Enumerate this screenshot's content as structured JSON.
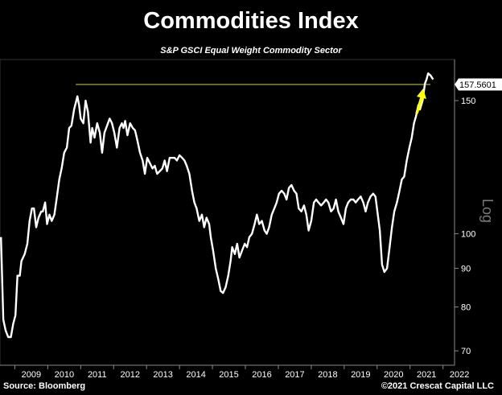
{
  "header": {
    "title": "Commodities Index",
    "subtitle": "S&P GSCI Equal Weight Commodity Sector"
  },
  "footer": {
    "source": "Source: Bloomberg",
    "copyright": "©2021 Crescat Capital LLC"
  },
  "chart_data": {
    "type": "line",
    "title": "Commodities Index",
    "subtitle": "S&P GSCI Equal Weight Commodity Sector",
    "yscale": "log",
    "ylabel": "Log",
    "ylim": [
      67,
      170
    ],
    "xlim": [
      2008.55,
      2022.35
    ],
    "x_ticks": [
      "2009",
      "2010",
      "2011",
      "2012",
      "2013",
      "2014",
      "2015",
      "2016",
      "2017",
      "2018",
      "2019",
      "2020",
      "2021",
      "2022"
    ],
    "y_ticks": [
      70,
      80,
      90,
      100,
      150
    ],
    "last_value_label": "157.5601",
    "reference_line": {
      "value": 157.5601,
      "color": "#d4d44a"
    },
    "annotation": "yellow-arrow",
    "colors": {
      "line": "#ffffff",
      "reference": "#d4d44a",
      "arrow": "#ffff00",
      "background": "#000000"
    },
    "series": [
      {
        "values": [
          [
            2008.58,
            99
          ],
          [
            2008.65,
            77
          ],
          [
            2008.72,
            74.5
          ],
          [
            2008.8,
            73
          ],
          [
            2008.88,
            73
          ],
          [
            2008.95,
            76
          ],
          [
            2009.02,
            78
          ],
          [
            2009.08,
            88
          ],
          [
            2009.15,
            88
          ],
          [
            2009.2,
            92
          ],
          [
            2009.3,
            94
          ],
          [
            2009.38,
            97
          ],
          [
            2009.45,
            104
          ],
          [
            2009.52,
            108
          ],
          [
            2009.58,
            108
          ],
          [
            2009.65,
            102
          ],
          [
            2009.72,
            105
          ],
          [
            2009.8,
            107
          ],
          [
            2009.85,
            107
          ],
          [
            2009.92,
            110
          ],
          [
            2009.98,
            103
          ],
          [
            2010.05,
            106
          ],
          [
            2010.12,
            104
          ],
          [
            2010.2,
            106
          ],
          [
            2010.28,
            112
          ],
          [
            2010.35,
            118
          ],
          [
            2010.42,
            122
          ],
          [
            2010.5,
            128
          ],
          [
            2010.58,
            130
          ],
          [
            2010.65,
            138
          ],
          [
            2010.72,
            139
          ],
          [
            2010.8,
            146
          ],
          [
            2010.85,
            149
          ],
          [
            2010.9,
            152
          ],
          [
            2010.95,
            148
          ],
          [
            2011.0,
            142
          ],
          [
            2011.08,
            140
          ],
          [
            2011.15,
            150
          ],
          [
            2011.22,
            145
          ],
          [
            2011.3,
            132
          ],
          [
            2011.35,
            138
          ],
          [
            2011.42,
            134
          ],
          [
            2011.5,
            140
          ],
          [
            2011.58,
            136
          ],
          [
            2011.65,
            128
          ],
          [
            2011.72,
            136
          ],
          [
            2011.8,
            139
          ],
          [
            2011.88,
            142
          ],
          [
            2011.95,
            140
          ],
          [
            2012.02,
            136
          ],
          [
            2012.1,
            130
          ],
          [
            2012.18,
            138
          ],
          [
            2012.25,
            140
          ],
          [
            2012.3,
            138
          ],
          [
            2012.35,
            141
          ],
          [
            2012.42,
            135
          ],
          [
            2012.5,
            140
          ],
          [
            2012.58,
            138
          ],
          [
            2012.65,
            137
          ],
          [
            2012.72,
            133
          ],
          [
            2012.8,
            128
          ],
          [
            2012.88,
            125
          ],
          [
            2012.95,
            120
          ],
          [
            2013.02,
            126
          ],
          [
            2013.1,
            124
          ],
          [
            2013.18,
            122
          ],
          [
            2013.25,
            123
          ],
          [
            2013.32,
            120
          ],
          [
            2013.4,
            121
          ],
          [
            2013.48,
            122
          ],
          [
            2013.55,
            125
          ],
          [
            2013.62,
            121
          ],
          [
            2013.7,
            126
          ],
          [
            2013.78,
            126
          ],
          [
            2013.85,
            126
          ],
          [
            2013.92,
            125
          ],
          [
            2014.0,
            127
          ],
          [
            2014.08,
            126
          ],
          [
            2014.15,
            125
          ],
          [
            2014.22,
            123
          ],
          [
            2014.3,
            120
          ],
          [
            2014.38,
            114
          ],
          [
            2014.45,
            110
          ],
          [
            2014.52,
            108
          ],
          [
            2014.6,
            104
          ],
          [
            2014.68,
            106
          ],
          [
            2014.75,
            102
          ],
          [
            2014.82,
            105
          ],
          [
            2014.9,
            103
          ],
          [
            2014.95,
            99
          ],
          [
            2015.02,
            95
          ],
          [
            2015.1,
            90
          ],
          [
            2015.18,
            87
          ],
          [
            2015.25,
            84
          ],
          [
            2015.32,
            83.5
          ],
          [
            2015.4,
            85
          ],
          [
            2015.48,
            88
          ],
          [
            2015.55,
            92
          ],
          [
            2015.6,
            96
          ],
          [
            2015.68,
            94
          ],
          [
            2015.75,
            97
          ],
          [
            2015.82,
            93
          ],
          [
            2015.9,
            95
          ],
          [
            2015.98,
            97
          ],
          [
            2016.05,
            96
          ],
          [
            2016.12,
            99
          ],
          [
            2016.2,
            100
          ],
          [
            2016.28,
            103
          ],
          [
            2016.35,
            106
          ],
          [
            2016.42,
            103
          ],
          [
            2016.5,
            104
          ],
          [
            2016.58,
            101
          ],
          [
            2016.65,
            100
          ],
          [
            2016.72,
            102
          ],
          [
            2016.8,
            106
          ],
          [
            2016.88,
            108
          ],
          [
            2016.95,
            110
          ],
          [
            2017.02,
            113
          ],
          [
            2017.1,
            114
          ],
          [
            2017.18,
            113
          ],
          [
            2017.25,
            111
          ],
          [
            2017.32,
            115
          ],
          [
            2017.4,
            116
          ],
          [
            2017.48,
            114
          ],
          [
            2017.55,
            113
          ],
          [
            2017.62,
            108
          ],
          [
            2017.7,
            107
          ],
          [
            2017.78,
            109
          ],
          [
            2017.85,
            106
          ],
          [
            2017.92,
            101
          ],
          [
            2018.0,
            104
          ],
          [
            2018.08,
            110
          ],
          [
            2018.15,
            111
          ],
          [
            2018.22,
            110
          ],
          [
            2018.3,
            109
          ],
          [
            2018.38,
            110
          ],
          [
            2018.45,
            111
          ],
          [
            2018.52,
            110
          ],
          [
            2018.6,
            107
          ],
          [
            2018.68,
            108
          ],
          [
            2018.75,
            111
          ],
          [
            2018.82,
            107
          ],
          [
            2018.9,
            105
          ],
          [
            2018.98,
            103
          ],
          [
            2019.05,
            108
          ],
          [
            2019.12,
            110
          ],
          [
            2019.2,
            111
          ],
          [
            2019.28,
            111
          ],
          [
            2019.35,
            110
          ],
          [
            2019.42,
            111
          ],
          [
            2019.5,
            112
          ],
          [
            2019.58,
            110
          ],
          [
            2019.65,
            107
          ],
          [
            2019.72,
            110
          ],
          [
            2019.8,
            112
          ],
          [
            2019.88,
            113
          ],
          [
            2019.95,
            112
          ],
          [
            2020.02,
            106
          ],
          [
            2020.08,
            101
          ],
          [
            2020.15,
            91
          ],
          [
            2020.22,
            89
          ],
          [
            2020.3,
            90
          ],
          [
            2020.38,
            96
          ],
          [
            2020.45,
            102
          ],
          [
            2020.52,
            107
          ],
          [
            2020.6,
            110
          ],
          [
            2020.68,
            114
          ],
          [
            2020.75,
            118
          ],
          [
            2020.82,
            119
          ],
          [
            2020.9,
            125
          ],
          [
            2020.98,
            130
          ],
          [
            2021.05,
            134
          ],
          [
            2021.12,
            140
          ],
          [
            2021.18,
            143
          ],
          [
            2021.25,
            148
          ],
          [
            2021.3,
            146
          ],
          [
            2021.38,
            150
          ],
          [
            2021.45,
            158
          ],
          [
            2021.5,
            160
          ],
          [
            2021.55,
            163
          ],
          [
            2021.62,
            162
          ],
          [
            2021.7,
            160
          ]
        ]
      }
    ]
  }
}
